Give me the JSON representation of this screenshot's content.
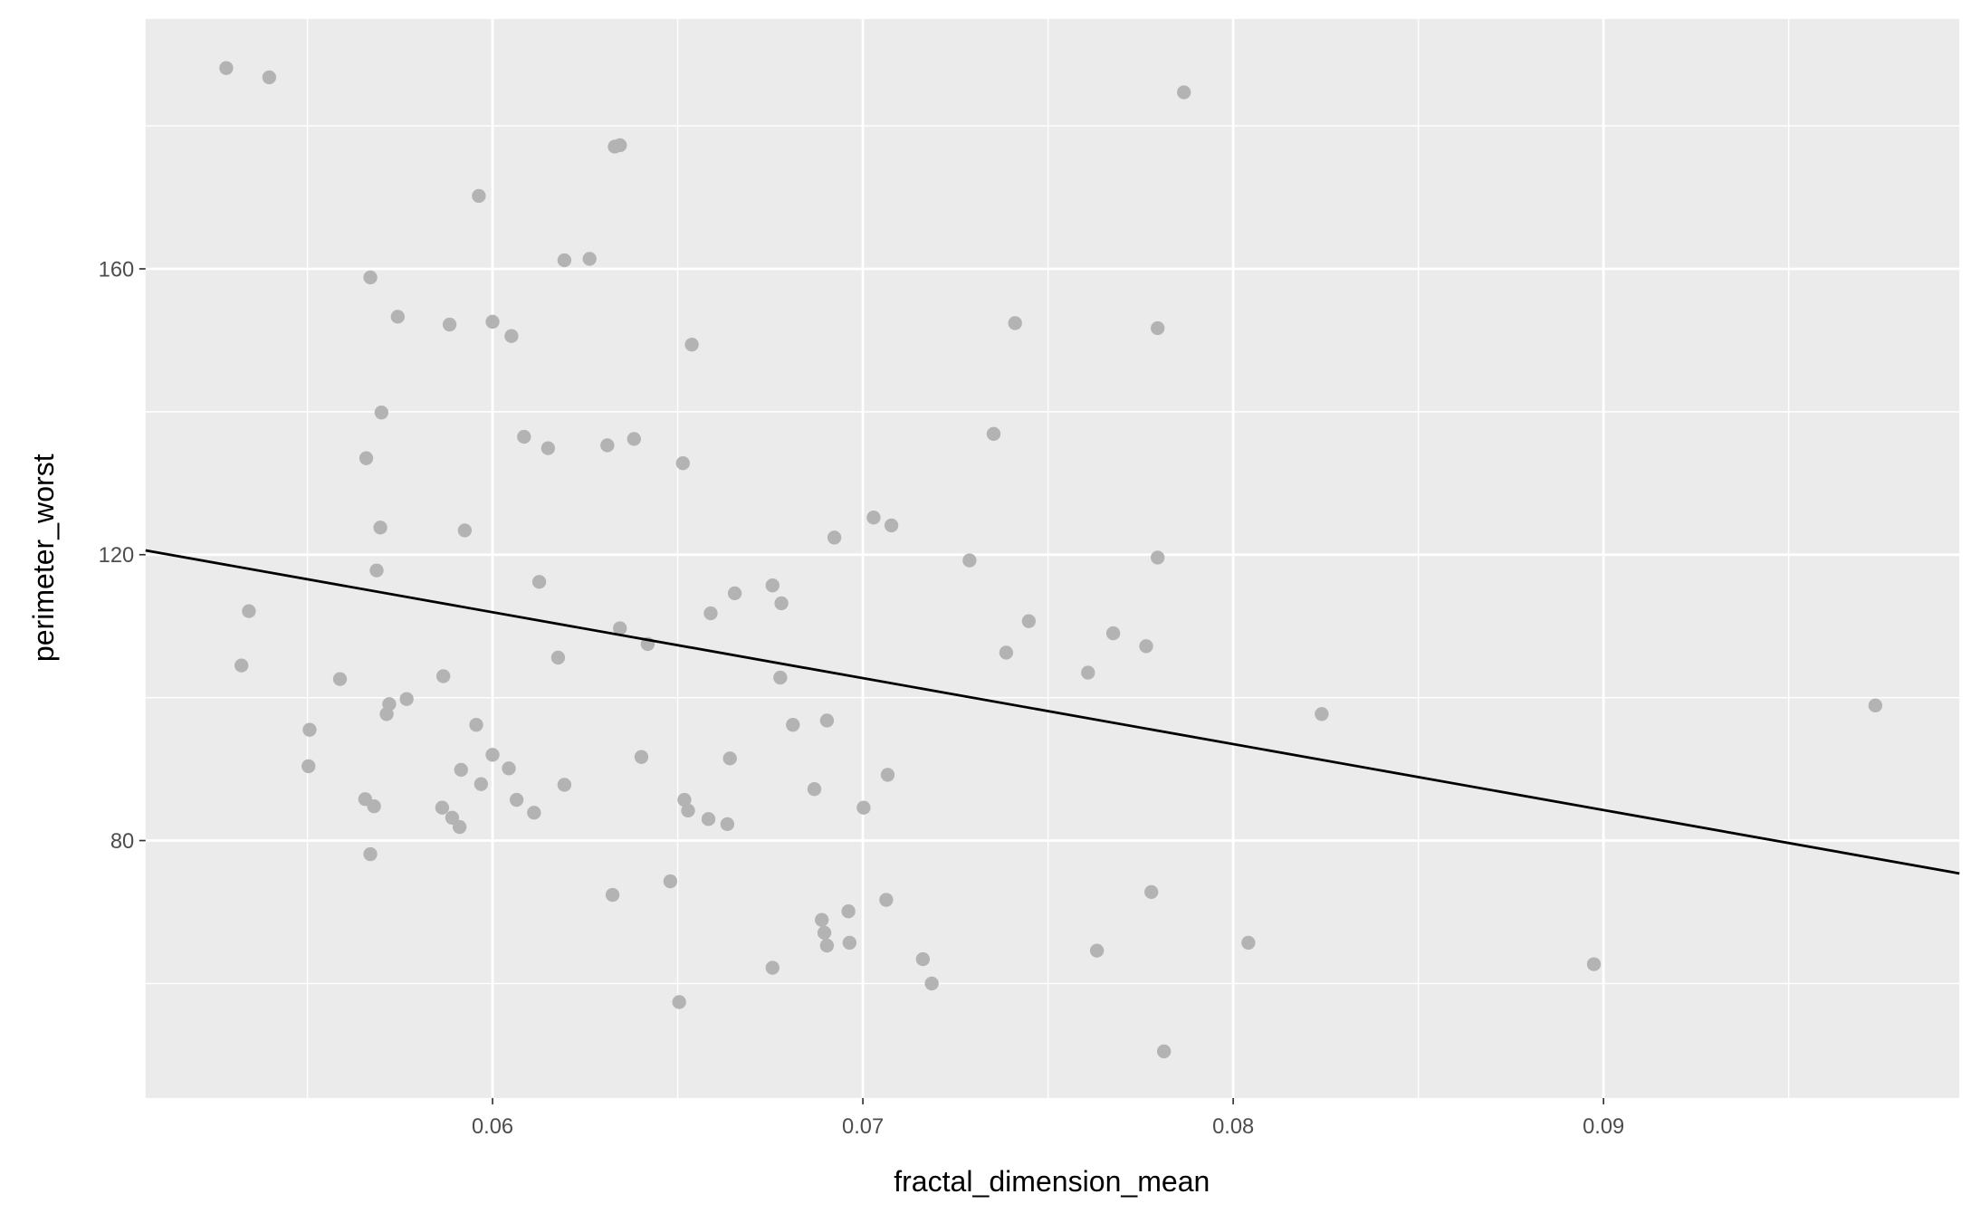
{
  "chart_data": {
    "type": "scatter",
    "x_label": "fractal_dimension_mean",
    "y_label": "perimeter_worst",
    "x": [
      0.05281,
      0.05397,
      0.07867,
      0.0633,
      0.06344,
      0.05963,
      0.0567,
      0.06194,
      0.06262,
      0.05744,
      0.05884,
      0.06,
      0.06051,
      0.06538,
      0.07411,
      0.07796,
      0.057,
      0.05659,
      0.06085,
      0.0615,
      0.0631,
      0.06382,
      0.06514,
      0.07353,
      0.05697,
      0.05925,
      0.05687,
      0.06126,
      0.07029,
      0.07077,
      0.06923,
      0.07288,
      0.07796,
      0.05342,
      0.05322,
      0.05588,
      0.05867,
      0.06177,
      0.06344,
      0.06419,
      0.06589,
      0.06654,
      0.06756,
      0.0678,
      0.06777,
      0.07448,
      0.07387,
      0.07676,
      0.07765,
      0.07608,
      0.08239,
      0.09734,
      0.05506,
      0.05503,
      0.05721,
      0.05714,
      0.05768,
      0.05956,
      0.06,
      0.05915,
      0.05969,
      0.06044,
      0.05656,
      0.0568,
      0.05864,
      0.05891,
      0.05911,
      0.06065,
      0.06112,
      0.06194,
      0.0567,
      0.06402,
      0.06641,
      0.06811,
      0.06903,
      0.06869,
      0.06518,
      0.06528,
      0.06583,
      0.06634,
      0.07002,
      0.07067,
      0.06324,
      0.0648,
      0.06889,
      0.06896,
      0.06903,
      0.06961,
      0.06964,
      0.07063,
      0.07162,
      0.07186,
      0.06756,
      0.06504,
      0.07632,
      0.07779,
      0.08041,
      0.08974,
      0.07813
    ],
    "y": [
      188.1,
      186.8,
      184.7,
      177.1,
      177.3,
      170.2,
      158.8,
      161.2,
      161.4,
      153.3,
      152.2,
      152.6,
      150.6,
      149.4,
      152.4,
      151.7,
      139.9,
      133.5,
      136.5,
      134.9,
      135.3,
      136.2,
      132.8,
      136.9,
      123.8,
      123.4,
      117.8,
      116.2,
      125.2,
      124.1,
      122.4,
      119.2,
      119.6,
      112.1,
      104.5,
      102.6,
      103.0,
      105.6,
      109.7,
      107.5,
      111.8,
      114.6,
      115.7,
      113.2,
      102.8,
      110.7,
      106.3,
      109.0,
      107.2,
      103.5,
      97.7,
      98.9,
      95.5,
      90.4,
      99.1,
      97.7,
      99.8,
      96.2,
      92.0,
      89.9,
      87.9,
      90.1,
      85.8,
      84.8,
      84.6,
      83.2,
      81.9,
      85.7,
      83.9,
      87.8,
      78.1,
      91.7,
      91.5,
      96.2,
      96.8,
      87.2,
      85.7,
      84.2,
      83.0,
      82.3,
      84.6,
      89.2,
      72.4,
      74.3,
      68.9,
      67.1,
      65.3,
      70.1,
      65.7,
      71.7,
      63.4,
      60.0,
      62.2,
      57.4,
      64.6,
      72.8,
      65.7,
      62.7,
      50.5
    ],
    "color": "#b3b3b3",
    "trend_line": {
      "x": [
        0.05063,
        0.09961
      ],
      "y": [
        120.6,
        75.4
      ],
      "color": "#000000"
    },
    "xlim": [
      0.05063,
      0.09961
    ],
    "ylim": [
      43.97,
      194.97
    ],
    "xticks": [
      0.06,
      0.07,
      0.08,
      0.09
    ],
    "yticks": [
      80,
      120,
      160
    ],
    "x_minor_ticks": [
      0.055,
      0.065,
      0.075,
      0.085,
      0.095
    ],
    "y_minor_ticks": [
      60,
      100,
      140,
      180
    ],
    "grid": true
  }
}
